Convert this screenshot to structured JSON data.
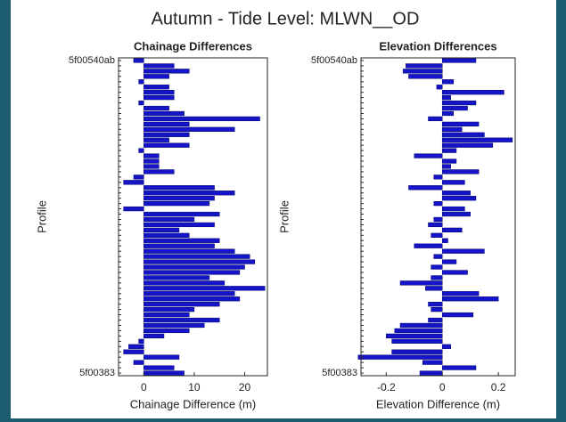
{
  "title": "Autumn - Tide Level: MLWN__OD",
  "chart_data": [
    {
      "type": "barh",
      "title": "Chainage Differences",
      "xlabel": "Chainage Difference (m)",
      "ylabel": "Profile",
      "color": "#1414c8",
      "categories": [
        "5f00540ab",
        null,
        null,
        null,
        null,
        null,
        null,
        null,
        null,
        null,
        null,
        null,
        null,
        null,
        null,
        null,
        null,
        null,
        null,
        null,
        null,
        null,
        null,
        null,
        null,
        null,
        null,
        null,
        null,
        null,
        null,
        null,
        null,
        null,
        null,
        null,
        null,
        null,
        null,
        null,
        null,
        null,
        null,
        null,
        null,
        null,
        null,
        null,
        null,
        null,
        null,
        null,
        null,
        null,
        null,
        null,
        null,
        null,
        null,
        "5f00383"
      ],
      "values": [
        -2,
        6,
        9,
        5,
        -1,
        5,
        6,
        6,
        -1,
        5,
        8,
        23,
        9,
        18,
        9,
        5,
        9,
        -1,
        3,
        3,
        3,
        6,
        -2,
        -4,
        14,
        18,
        14,
        13,
        -4,
        15,
        10,
        14,
        7,
        9,
        15,
        14,
        18,
        21,
        22,
        20,
        19,
        13,
        16,
        24,
        18,
        19,
        15,
        10,
        9,
        15,
        12,
        9,
        4,
        -1,
        -3,
        -4,
        7,
        -2,
        6,
        8
      ],
      "xlim": [
        -5,
        24.5
      ],
      "xticks": [
        0,
        10,
        20
      ]
    },
    {
      "type": "barh",
      "title": "Elevation Differences",
      "xlabel": "Elevation Difference (m)",
      "ylabel": "Profile",
      "color": "#1414c8",
      "categories": [
        "5f00540ab",
        null,
        null,
        null,
        null,
        null,
        null,
        null,
        null,
        null,
        null,
        null,
        null,
        null,
        null,
        null,
        null,
        null,
        null,
        null,
        null,
        null,
        null,
        null,
        null,
        null,
        null,
        null,
        null,
        null,
        null,
        null,
        null,
        null,
        null,
        null,
        null,
        null,
        null,
        null,
        null,
        null,
        null,
        null,
        null,
        null,
        null,
        null,
        null,
        null,
        null,
        null,
        null,
        null,
        null,
        null,
        null,
        null,
        null,
        "5f00383"
      ],
      "values": [
        0.12,
        -0.13,
        -0.14,
        -0.12,
        0.04,
        -0.02,
        0.22,
        0.03,
        0.12,
        0.09,
        0.04,
        -0.05,
        0.13,
        0.07,
        0.15,
        0.25,
        0.18,
        0.05,
        -0.1,
        0.05,
        0.03,
        0.13,
        -0.03,
        0.08,
        -0.12,
        0.1,
        0.12,
        -0.03,
        0.08,
        0.1,
        -0.03,
        -0.05,
        0.07,
        -0.04,
        0.02,
        -0.1,
        0.15,
        -0.03,
        0.05,
        -0.04,
        0.09,
        -0.04,
        -0.15,
        -0.06,
        0.13,
        0.2,
        -0.05,
        -0.04,
        0.11,
        -0.05,
        -0.15,
        -0.17,
        -0.2,
        -0.18,
        0.03,
        -0.18,
        -0.3,
        -0.07,
        0.12,
        -0.08
      ],
      "xlim": [
        -0.29,
        0.26
      ],
      "xticks": [
        -0.2,
        0,
        0.2
      ]
    }
  ]
}
